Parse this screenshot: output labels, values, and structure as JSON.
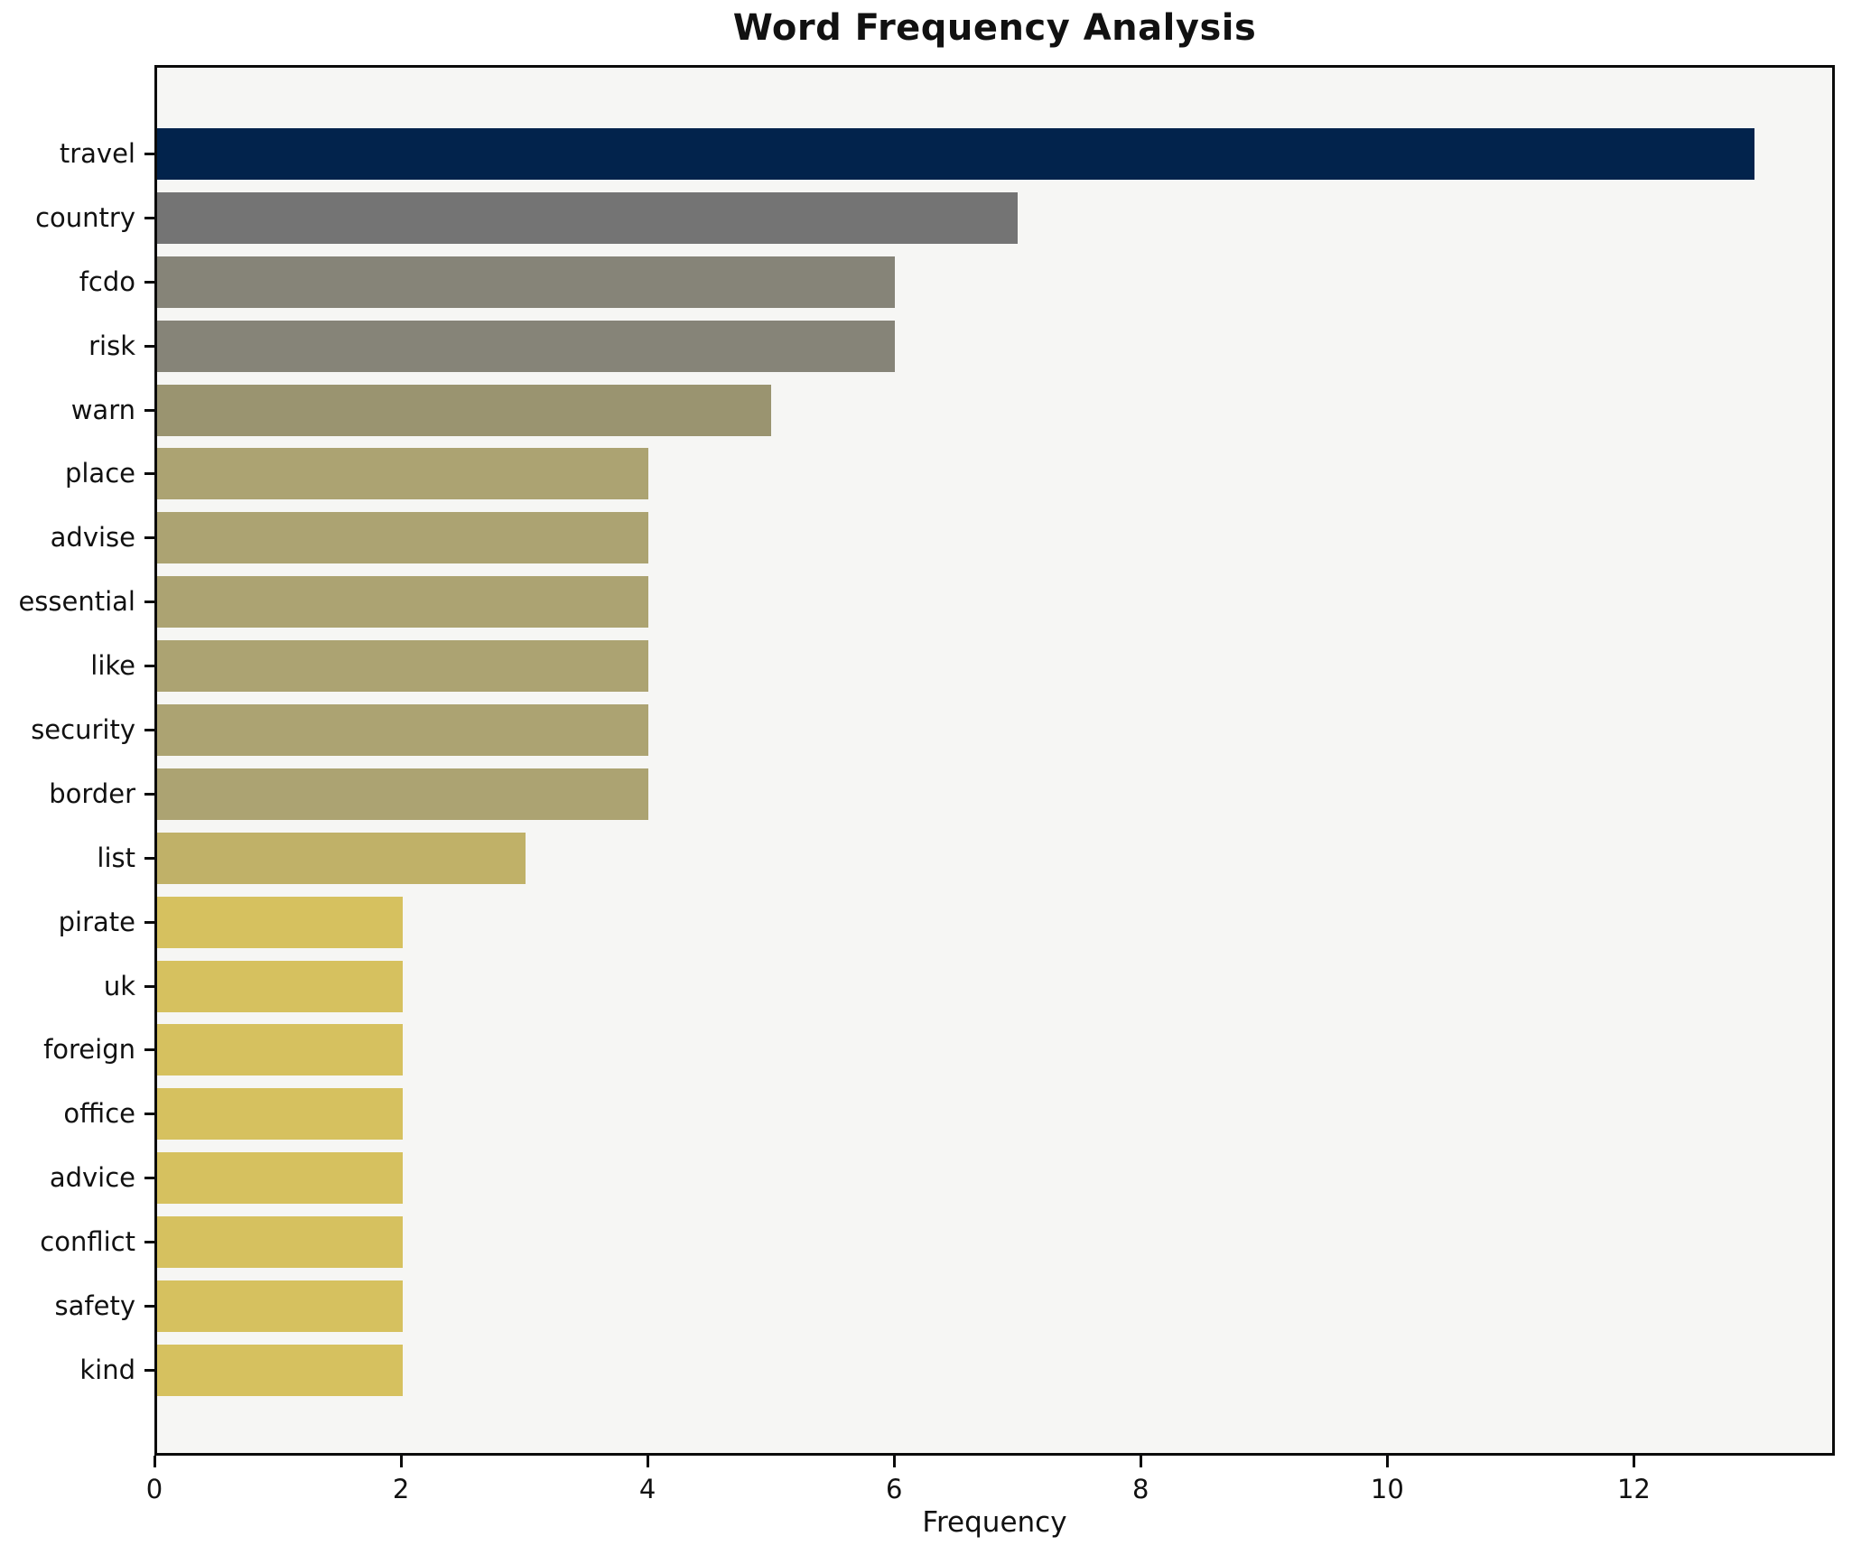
{
  "chart_data": {
    "type": "bar",
    "orientation": "horizontal",
    "title": "Word Frequency Analysis",
    "xlabel": "Frequency",
    "ylabel": "",
    "grid": false,
    "legend": null,
    "plot_background": "#f6f6f4",
    "xlim": [
      0,
      13.63
    ],
    "xticks": [
      0,
      2,
      4,
      6,
      8,
      10,
      12
    ],
    "categories": [
      "travel",
      "country",
      "fcdo",
      "risk",
      "warn",
      "place",
      "advise",
      "essential",
      "like",
      "security",
      "border",
      "list",
      "pirate",
      "uk",
      "foreign",
      "office",
      "advice",
      "conflict",
      "safety",
      "kind"
    ],
    "values": [
      13,
      7,
      6,
      6,
      5,
      4,
      4,
      4,
      4,
      4,
      4,
      3,
      2,
      2,
      2,
      2,
      2,
      2,
      2,
      2
    ],
    "colors": [
      "#02234c",
      "#747474",
      "#868478",
      "#868478",
      "#9a9470",
      "#aca372",
      "#aca372",
      "#aca372",
      "#aca372",
      "#aca372",
      "#aca372",
      "#c0b168",
      "#d6c15f",
      "#d6c15f",
      "#d6c15f",
      "#d6c15f",
      "#d6c15f",
      "#d6c15f",
      "#d6c15f",
      "#d6c15f"
    ]
  }
}
